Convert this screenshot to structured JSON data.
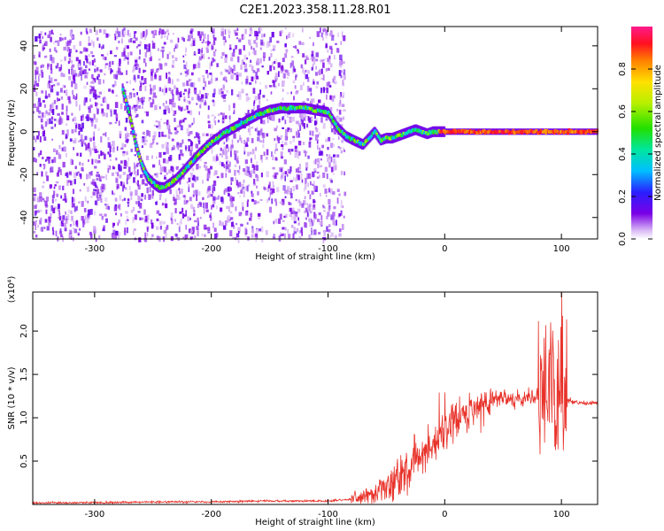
{
  "title": "C2E1.2023.358.11.28.R01",
  "chart_data": [
    {
      "type": "heatmap",
      "xlabel": "Height of straight line (km)",
      "ylabel": "Frequency (Hz)",
      "xlim": [
        -353,
        131
      ],
      "ylim": [
        -50,
        49
      ],
      "xticks": [
        -300,
        -200,
        -100,
        0,
        100
      ],
      "yticks": [
        -40,
        -20,
        0,
        20,
        40
      ],
      "noise_region_xlim": [
        -353,
        -86
      ],
      "ridge": {
        "x": [
          -276,
          -270,
          -265,
          -260,
          -255,
          -250,
          -245,
          -240,
          -230,
          -220,
          -210,
          -200,
          -190,
          -180,
          -170,
          -160,
          -150,
          -140,
          -130,
          -120,
          -110,
          -100,
          -92,
          -85,
          -78,
          -70,
          -65,
          -60,
          -55,
          -50,
          -45,
          -40,
          -35,
          -30,
          -25,
          -20,
          -15,
          -10,
          -5,
          0,
          20,
          40,
          60,
          80,
          90,
          95,
          100,
          110,
          131
        ],
        "y": [
          20,
          8,
          -5,
          -15,
          -21,
          -24,
          -26,
          -26,
          -22,
          -16,
          -10,
          -5,
          -1,
          2,
          5,
          8,
          10,
          11,
          11,
          11,
          10,
          9,
          2,
          -2,
          -4,
          -6,
          -3,
          0,
          -4,
          -3,
          -3,
          -2,
          -1,
          0,
          1,
          0,
          -1,
          0,
          0,
          0,
          0,
          0,
          0,
          0,
          0,
          0,
          0,
          0,
          0
        ]
      },
      "colorbar": {
        "label": "Normalized spectral amplitude",
        "range": [
          0,
          1
        ],
        "ticks": [
          "0.0",
          "0.2",
          "0.4",
          "0.6",
          "0.8"
        ]
      }
    },
    {
      "type": "line",
      "xlabel": "Height of straight line (km)",
      "ylabel": "SNR (10 * v/v)",
      "multiplier": "(x10⁴)",
      "xlim": [
        -353,
        131
      ],
      "ylim": [
        0,
        2.45
      ],
      "xticks": [
        -300,
        -200,
        -100,
        0,
        100
      ],
      "yticks": [
        "0.5",
        "1.0",
        "1.5",
        "2.0"
      ],
      "series": [
        {
          "color": "#e8322a",
          "x": [
            -353,
            -300,
            -250,
            -200,
            -150,
            -100,
            -80,
            -60,
            -50,
            -45,
            -40,
            -30,
            -20,
            -10,
            0,
            10,
            20,
            30,
            40,
            50,
            60,
            70,
            80,
            85,
            90,
            95,
            100,
            105,
            110,
            120,
            131
          ],
          "y": [
            0.02,
            0.02,
            0.03,
            0.03,
            0.04,
            0.04,
            0.06,
            0.12,
            0.2,
            0.28,
            0.3,
            0.45,
            0.55,
            0.72,
            0.85,
            0.98,
            1.08,
            1.15,
            1.22,
            1.23,
            1.22,
            1.24,
            1.25,
            1.22,
            1.3,
            1.25,
            1.3,
            1.2,
            1.18,
            1.17,
            1.17
          ]
        }
      ]
    }
  ]
}
